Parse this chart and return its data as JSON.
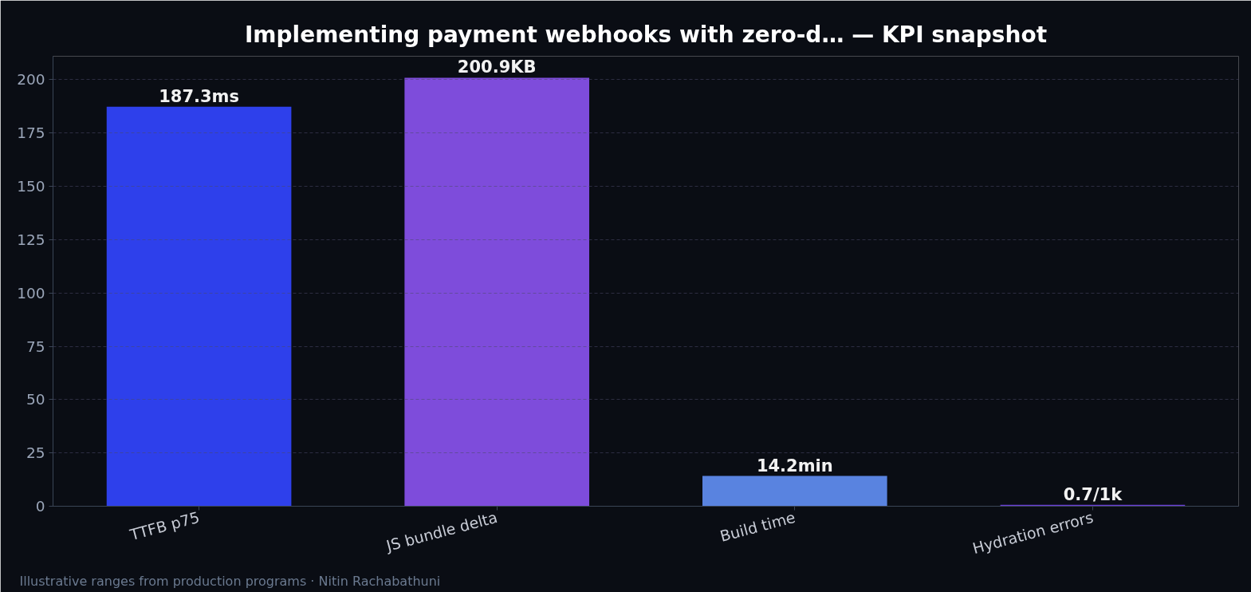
{
  "chart_data": {
    "type": "bar",
    "title": "Implementing payment webhooks with zero-d… — KPI snapshot",
    "categories": [
      "TTFB p75",
      "JS bundle delta",
      "Build time",
      "Hydration errors"
    ],
    "values": [
      187.3,
      200.9,
      14.2,
      0.7
    ],
    "colors": [
      "#2e40eb",
      "#7e4cdb",
      "#5983e0",
      "#6a3fd6"
    ],
    "value_labels": [
      "187.3ms",
      "200.9KB",
      "14.2min",
      "0.7/1k"
    ],
    "ylim": [
      0,
      211
    ],
    "yticks": [
      0,
      25,
      50,
      75,
      100,
      125,
      150,
      175,
      200
    ],
    "grid": "y",
    "annotations": [
      "Illustrative ranges from production programs · Nitin Rachabathuni"
    ]
  }
}
